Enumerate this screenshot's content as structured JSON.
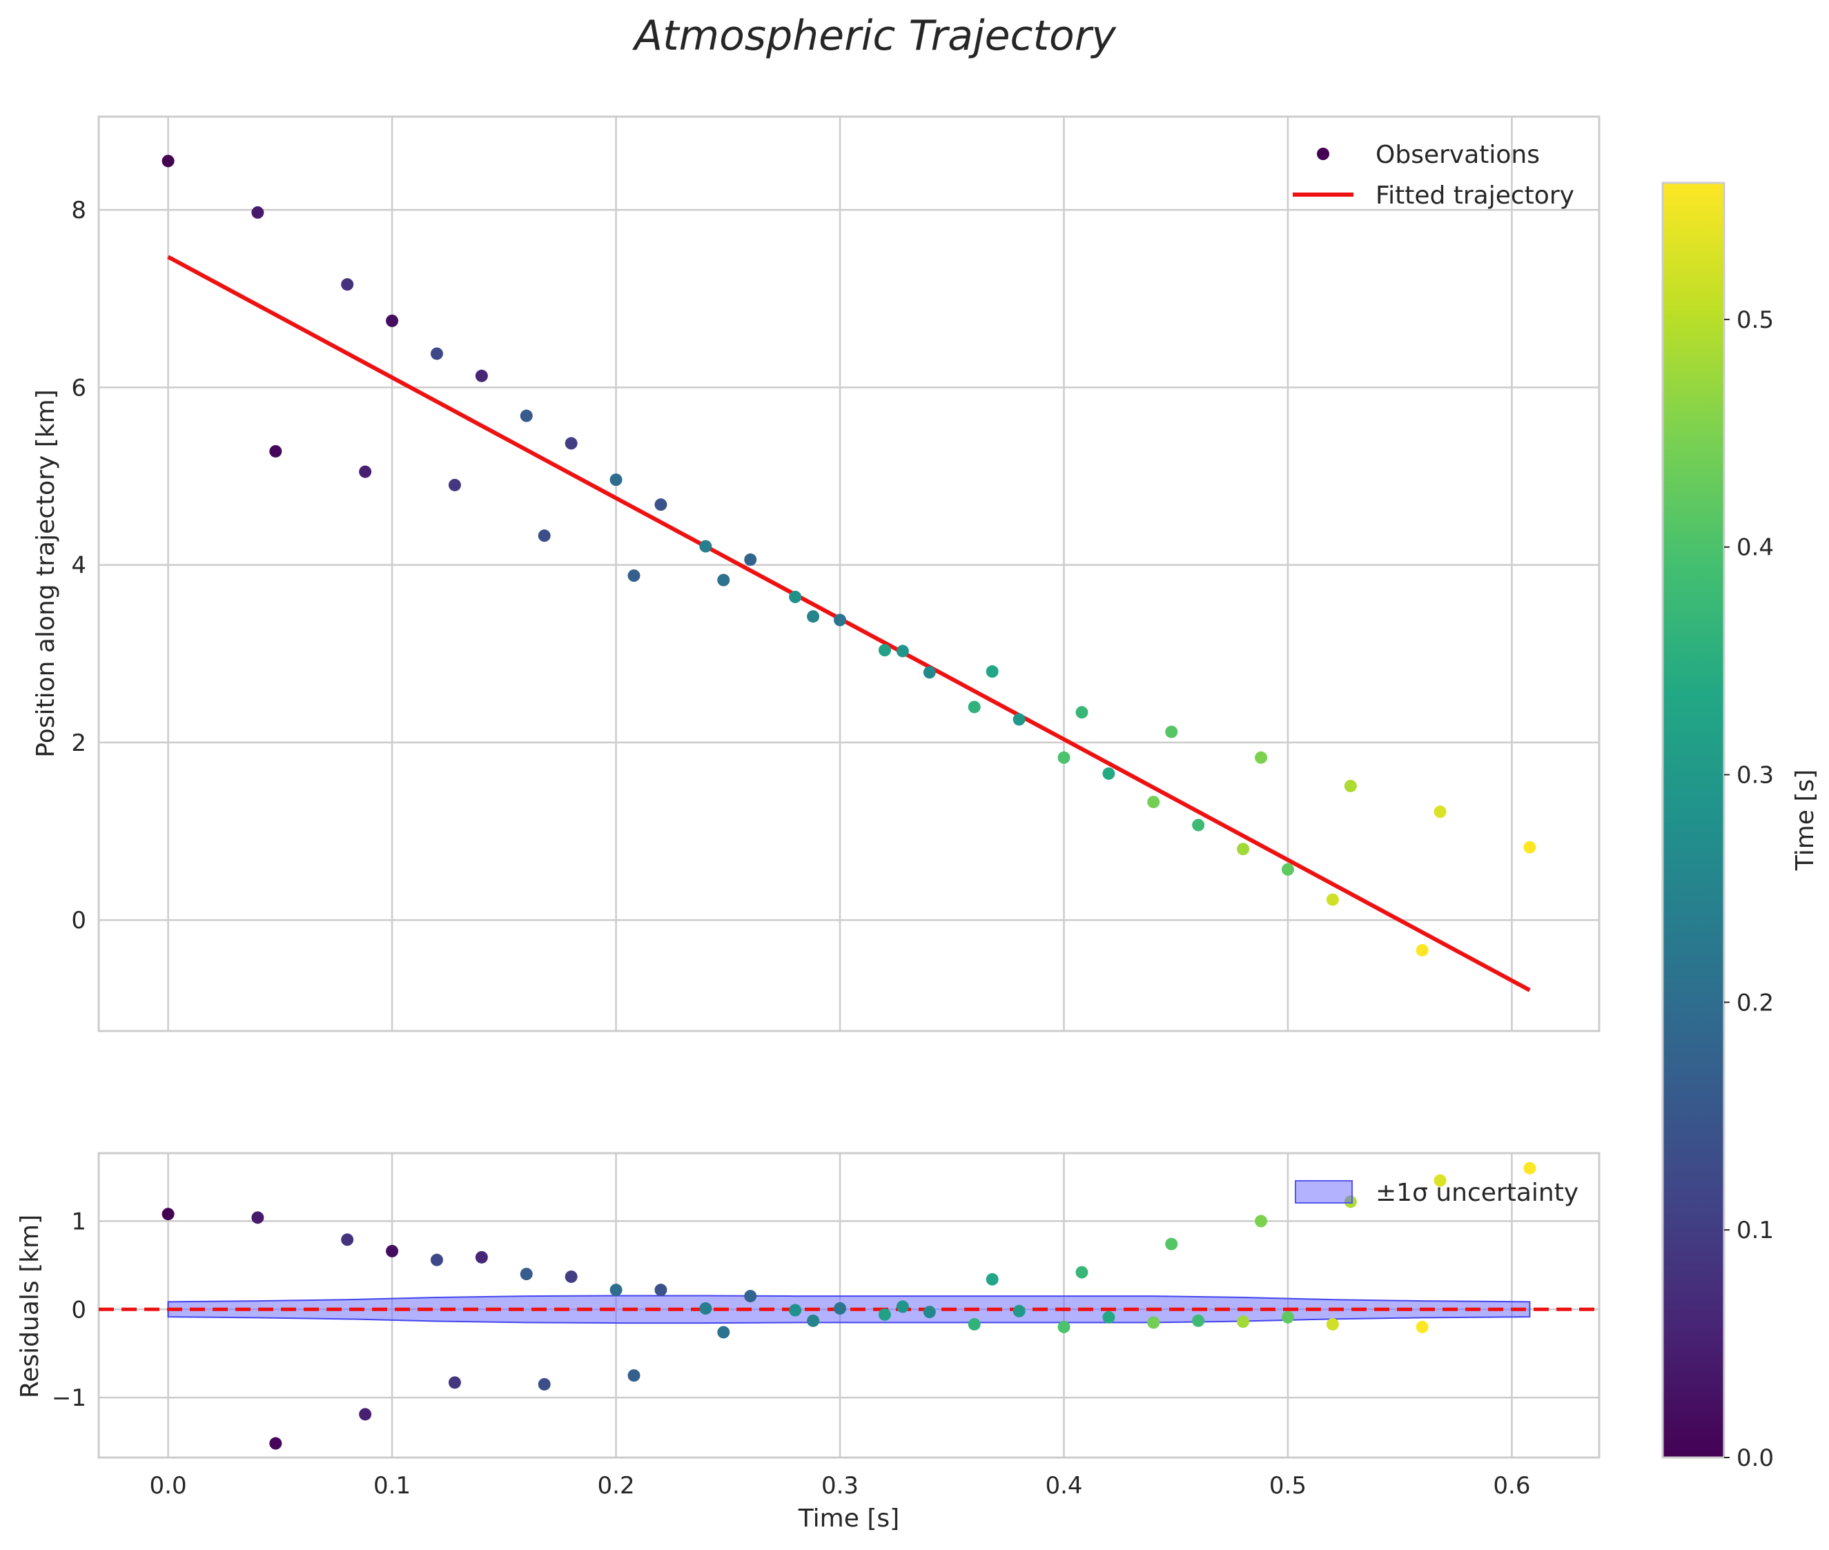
{
  "chart_data": {
    "title": "Atmospheric Trajectory",
    "panels": [
      {
        "name": "trajectory",
        "type": "scatter+line",
        "ylabel": "Position along trajectory [km]",
        "xlim": [
          -0.031,
          0.639
        ],
        "ylim": [
          -1.25,
          9.05
        ],
        "xticks": [
          0.0,
          0.1,
          0.2,
          0.3,
          0.4,
          0.5,
          0.6
        ],
        "yticks": [
          0,
          2,
          4,
          6,
          8
        ],
        "grid": true,
        "legend": {
          "position": "top-right",
          "entries": [
            "Observations",
            "Fitted trajectory"
          ]
        }
      },
      {
        "name": "residuals",
        "type": "scatter+band",
        "ylabel": "Residuals [km]",
        "xlabel": "Time [s]",
        "xlim": [
          -0.031,
          0.639
        ],
        "ylim": [
          -1.68,
          1.77
        ],
        "xticks": [
          0.0,
          0.1,
          0.2,
          0.3,
          0.4,
          0.5,
          0.6
        ],
        "yticks": [
          -1,
          0,
          1
        ],
        "grid": true,
        "legend": {
          "position": "top-right",
          "entries": [
            "±1σ uncertainty"
          ]
        }
      }
    ],
    "fitted_line": {
      "name": "Fitted trajectory",
      "x": [
        0.0,
        0.608
      ],
      "y": [
        7.47,
        -0.79
      ],
      "color": "#ee1111"
    },
    "zero_line": {
      "y": 0,
      "style": "dashed",
      "color": "#ee1111"
    },
    "uncertainty_band": {
      "name": "±1σ uncertainty",
      "x": [
        0.0,
        0.04,
        0.08,
        0.12,
        0.16,
        0.2,
        0.24,
        0.28,
        0.32,
        0.36,
        0.4,
        0.44,
        0.48,
        0.52,
        0.56,
        0.608
      ],
      "sigma": [
        0.085,
        0.095,
        0.11,
        0.135,
        0.15,
        0.155,
        0.155,
        0.15,
        0.15,
        0.15,
        0.15,
        0.15,
        0.135,
        0.11,
        0.095,
        0.085
      ],
      "color": "#6666ff"
    },
    "colorbar": {
      "label": "Time [s]",
      "range": [
        0.0,
        0.56
      ],
      "ticks": [
        0.0,
        0.1,
        0.2,
        0.3,
        0.4,
        0.5
      ]
    },
    "observations": {
      "name": "Observations",
      "points": [
        {
          "t": 0.0,
          "pos": 8.55,
          "res": 1.08,
          "c": 0.0
        },
        {
          "t": 0.04,
          "pos": 7.97,
          "res": 1.04,
          "c": 0.04
        },
        {
          "t": 0.048,
          "pos": 5.28,
          "res": -1.52,
          "c": 0.01
        },
        {
          "t": 0.08,
          "pos": 7.16,
          "res": 0.79,
          "c": 0.08
        },
        {
          "t": 0.088,
          "pos": 5.05,
          "res": -1.19,
          "c": 0.05
        },
        {
          "t": 0.1,
          "pos": 6.75,
          "res": 0.66,
          "c": 0.02
        },
        {
          "t": 0.12,
          "pos": 6.38,
          "res": 0.56,
          "c": 0.12
        },
        {
          "t": 0.128,
          "pos": 4.9,
          "res": -0.83,
          "c": 0.09
        },
        {
          "t": 0.14,
          "pos": 6.13,
          "res": 0.59,
          "c": 0.06
        },
        {
          "t": 0.16,
          "pos": 5.68,
          "res": 0.4,
          "c": 0.16
        },
        {
          "t": 0.168,
          "pos": 4.33,
          "res": -0.85,
          "c": 0.13
        },
        {
          "t": 0.18,
          "pos": 5.37,
          "res": 0.37,
          "c": 0.1
        },
        {
          "t": 0.2,
          "pos": 4.96,
          "res": 0.22,
          "c": 0.2
        },
        {
          "t": 0.208,
          "pos": 3.88,
          "res": -0.75,
          "c": 0.17
        },
        {
          "t": 0.22,
          "pos": 4.68,
          "res": 0.22,
          "c": 0.14
        },
        {
          "t": 0.24,
          "pos": 4.21,
          "res": 0.01,
          "c": 0.24
        },
        {
          "t": 0.248,
          "pos": 3.83,
          "res": -0.26,
          "c": 0.21
        },
        {
          "t": 0.26,
          "pos": 4.06,
          "res": 0.15,
          "c": 0.18
        },
        {
          "t": 0.28,
          "pos": 3.64,
          "res": -0.01,
          "c": 0.28
        },
        {
          "t": 0.288,
          "pos": 3.42,
          "res": -0.13,
          "c": 0.25
        },
        {
          "t": 0.3,
          "pos": 3.38,
          "res": 0.01,
          "c": 0.22
        },
        {
          "t": 0.32,
          "pos": 3.04,
          "res": -0.06,
          "c": 0.32
        },
        {
          "t": 0.328,
          "pos": 3.03,
          "res": 0.03,
          "c": 0.29
        },
        {
          "t": 0.34,
          "pos": 2.79,
          "res": -0.03,
          "c": 0.26
        },
        {
          "t": 0.36,
          "pos": 2.4,
          "res": -0.17,
          "c": 0.36
        },
        {
          "t": 0.368,
          "pos": 2.8,
          "res": 0.34,
          "c": 0.33
        },
        {
          "t": 0.38,
          "pos": 2.26,
          "res": -0.02,
          "c": 0.3
        },
        {
          "t": 0.4,
          "pos": 1.83,
          "res": -0.2,
          "c": 0.4
        },
        {
          "t": 0.408,
          "pos": 2.34,
          "res": 0.42,
          "c": 0.37
        },
        {
          "t": 0.42,
          "pos": 1.65,
          "res": -0.09,
          "c": 0.34
        },
        {
          "t": 0.44,
          "pos": 1.33,
          "res": -0.15,
          "c": 0.44
        },
        {
          "t": 0.448,
          "pos": 2.12,
          "res": 0.74,
          "c": 0.41
        },
        {
          "t": 0.46,
          "pos": 1.07,
          "res": -0.13,
          "c": 0.38
        },
        {
          "t": 0.48,
          "pos": 0.8,
          "res": -0.14,
          "c": 0.48
        },
        {
          "t": 0.488,
          "pos": 1.83,
          "res": 1.0,
          "c": 0.45
        },
        {
          "t": 0.5,
          "pos": 0.57,
          "res": -0.09,
          "c": 0.42
        },
        {
          "t": 0.52,
          "pos": 0.23,
          "res": -0.17,
          "c": 0.52
        },
        {
          "t": 0.528,
          "pos": 1.51,
          "res": 1.22,
          "c": 0.49
        },
        {
          "t": 0.56,
          "pos": -0.34,
          "res": -0.2,
          "c": 0.56
        },
        {
          "t": 0.568,
          "pos": 1.22,
          "res": 1.46,
          "c": 0.53
        },
        {
          "t": 0.608,
          "pos": 0.82,
          "res": 1.6,
          "c": 0.56
        }
      ]
    }
  }
}
